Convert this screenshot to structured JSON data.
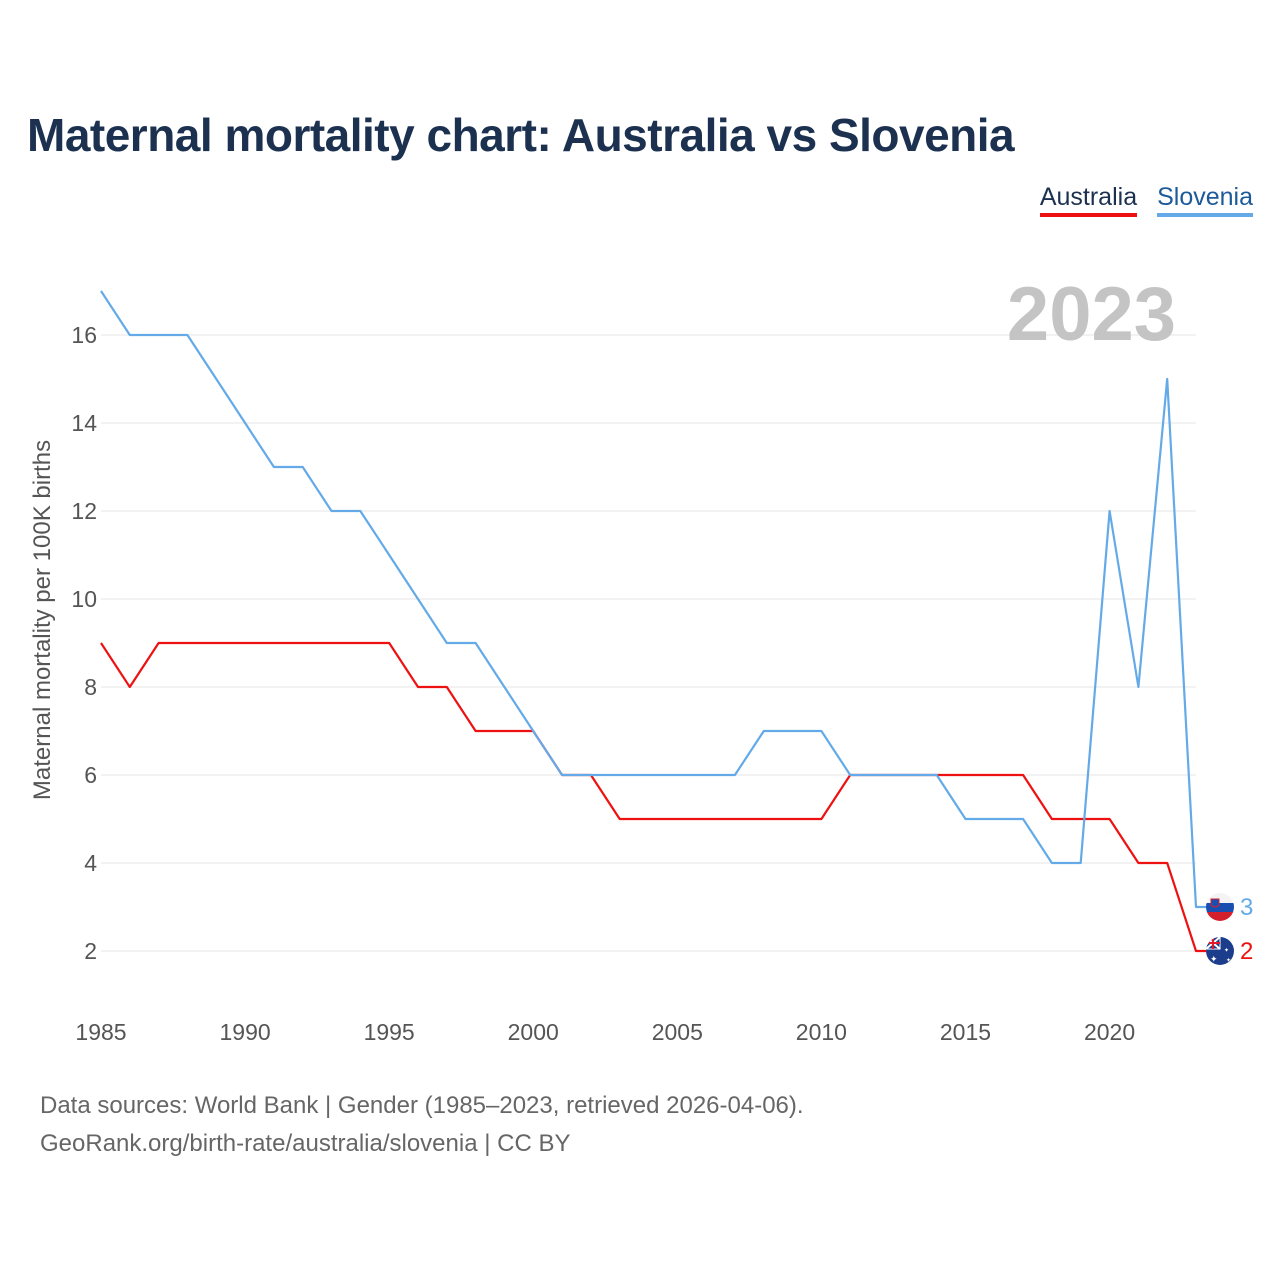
{
  "title": "Maternal mortality chart: Australia vs Slovenia",
  "legend": [
    {
      "name": "Australia",
      "color": "#ee1111"
    },
    {
      "name": "Slovenia",
      "color": "#64aae8"
    }
  ],
  "current_year": "2023",
  "chart_data": {
    "type": "line",
    "title": "Maternal mortality chart: Australia vs Slovenia",
    "xlabel": "",
    "ylabel": "Maternal mortality per 100K births",
    "x": [
      1985,
      1986,
      1987,
      1988,
      1989,
      1990,
      1991,
      1992,
      1993,
      1994,
      1995,
      1996,
      1997,
      1998,
      1999,
      2000,
      2001,
      2002,
      2003,
      2004,
      2005,
      2006,
      2007,
      2008,
      2009,
      2010,
      2011,
      2012,
      2013,
      2014,
      2015,
      2016,
      2017,
      2018,
      2019,
      2020,
      2021,
      2022,
      2023
    ],
    "xlim": [
      1985,
      2023
    ],
    "ylim": [
      1,
      17
    ],
    "xticks": [
      "1985",
      "1990",
      "1995",
      "2000",
      "2005",
      "2010",
      "2015",
      "2020"
    ],
    "yticks": [
      "2",
      "4",
      "6",
      "8",
      "10",
      "12",
      "14",
      "16"
    ],
    "grid": true,
    "legend_position": "top-right",
    "series": [
      {
        "name": "Australia",
        "color": "#ee1111",
        "end_label": "2",
        "values": [
          9,
          8,
          9,
          9,
          9,
          9,
          9,
          9,
          9,
          9,
          9,
          8,
          8,
          7,
          7,
          7,
          6,
          6,
          5,
          5,
          5,
          5,
          5,
          5,
          5,
          5,
          6,
          6,
          6,
          6,
          6,
          6,
          6,
          5,
          5,
          5,
          4,
          4,
          2
        ]
      },
      {
        "name": "Slovenia",
        "color": "#64aae8",
        "end_label": "3",
        "values": [
          17,
          16,
          16,
          16,
          15,
          14,
          13,
          13,
          12,
          12,
          11,
          10,
          9,
          9,
          8,
          7,
          6,
          6,
          6,
          6,
          6,
          6,
          6,
          7,
          7,
          7,
          6,
          6,
          6,
          6,
          5,
          5,
          5,
          4,
          4,
          12,
          8,
          15,
          3
        ]
      }
    ]
  },
  "footer": {
    "line1": "Data sources: World Bank | Gender (1985–2023, retrieved 2026-04-06).",
    "line2": "GeoRank.org/birth-rate/australia/slovenia | CC BY"
  }
}
